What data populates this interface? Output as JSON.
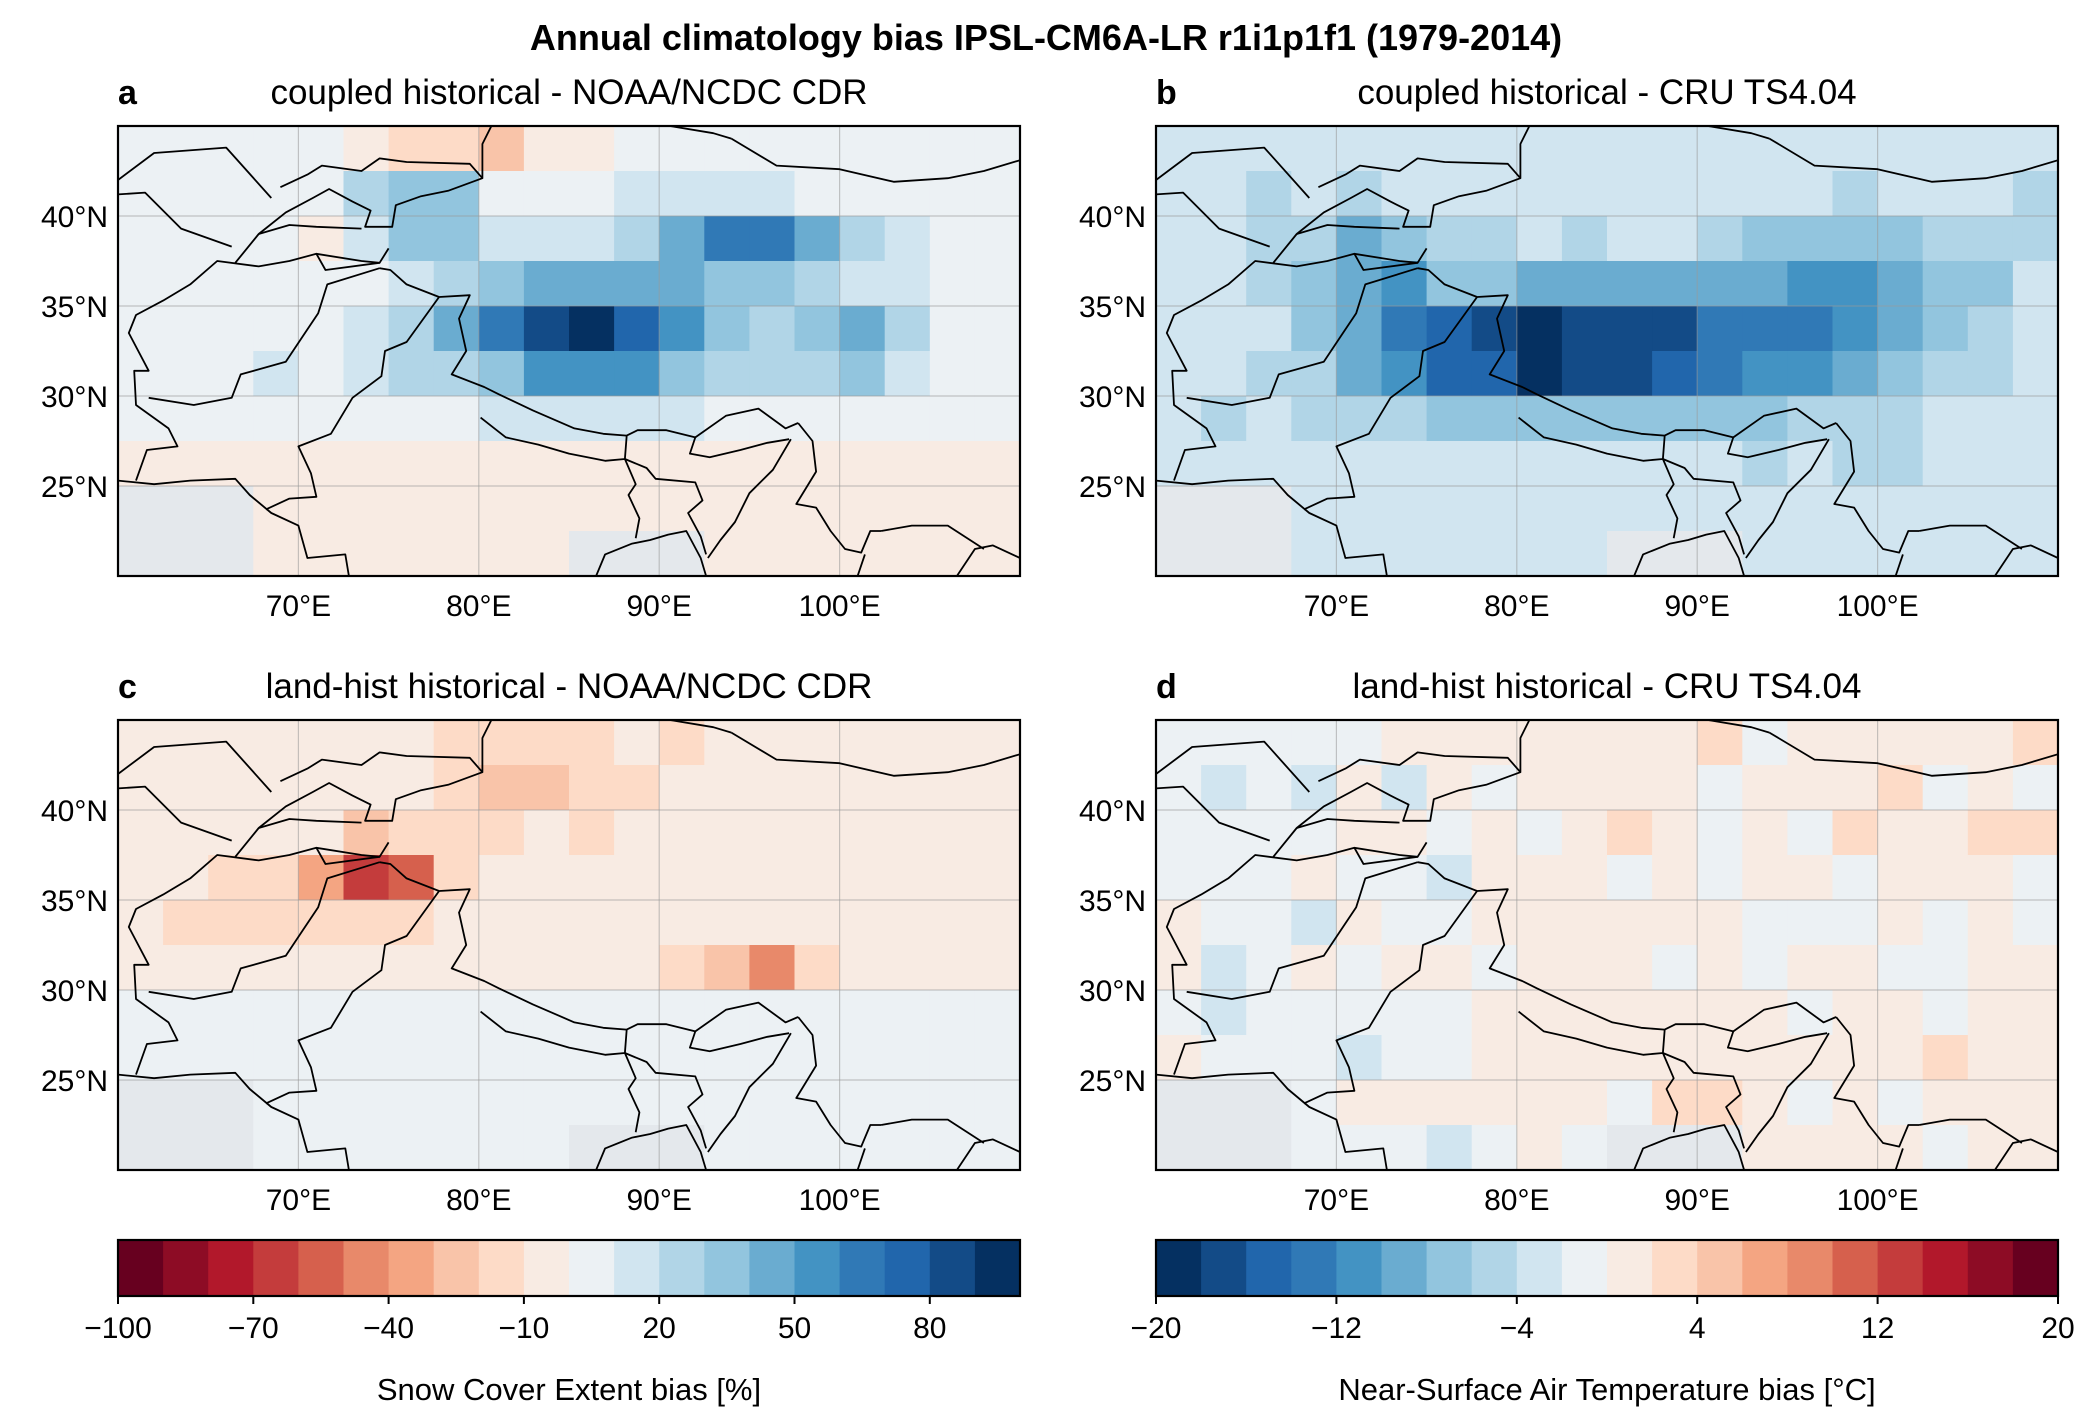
{
  "figure": {
    "title": "Annual climatology bias IPSL-CM6A-LR r1i1p1f1 (1979-2014)"
  },
  "panels": [
    {
      "letter": "a",
      "title": "coupled historical - NOAA/NCDC CDR"
    },
    {
      "letter": "b",
      "title": "coupled historical - CRU TS4.04"
    },
    {
      "letter": "c",
      "title": "land-hist historical - NOAA/NCDC CDR"
    },
    {
      "letter": "d",
      "title": "land-hist historical - CRU TS4.04"
    }
  ],
  "axes": {
    "lat_labels": [
      "40°N",
      "35°N",
      "30°N",
      "25°N"
    ],
    "lon_labels": [
      "70°E",
      "80°E",
      "90°E",
      "100°E"
    ]
  },
  "colorbars": {
    "snow": {
      "label": "Snow Cover Extent bias [%]",
      "tick_labels": [
        "−100",
        "−70",
        "−40",
        "−10",
        "20",
        "50",
        "80"
      ],
      "colors": [
        "#67001f",
        "#8d0c25",
        "#b2182b",
        "#c43c3c",
        "#d6604d",
        "#e8896a",
        "#f4a582",
        "#f9c4a9",
        "#fddbc7",
        "#f8ebe3",
        "#ecf1f4",
        "#d1e5f0",
        "#b1d5e7",
        "#92c5de",
        "#6aacd0",
        "#4393c3",
        "#3079b6",
        "#2166ac",
        "#134b87",
        "#053061"
      ]
    },
    "temp": {
      "label": "Near-Surface Air Temperature bias [°C]",
      "tick_labels": [
        "−20",
        "−12",
        "−4",
        "4",
        "12",
        "20"
      ],
      "colors": [
        "#053061",
        "#134b87",
        "#2166ac",
        "#3079b6",
        "#4393c3",
        "#6aacd0",
        "#92c5de",
        "#b1d5e7",
        "#d1e5f0",
        "#ecf1f4",
        "#f8ebe3",
        "#fddbc7",
        "#f9c4a9",
        "#f4a582",
        "#e8896a",
        "#d6604d",
        "#c43c3c",
        "#b2182b",
        "#8d0c25",
        "#67001f"
      ]
    }
  },
  "chart_data": [
    {
      "type": "heatmap",
      "panel": "a",
      "title": "coupled historical - NOAA/NCDC CDR",
      "xlim": [
        60,
        110
      ],
      "ylim": [
        20,
        45
      ],
      "colorbar": "snow",
      "vmin": -100,
      "vmax": 100,
      "grid_lon_start": 60,
      "grid_lat_top": 45,
      "dlon": 2.5,
      "dlat": 2.5,
      "rows": [
        "aaaaaaaMMNNNNNaaaaaa",
        "aaaaaaNPSSNaaaaaaaaa",
        "aaaaaMaaWbbSbaaaaaaa",
        "aaaaaVZZYaaWaabbaaaa",
        "aaaaVTbWYdddbZYWaaaa",
        "aaaaaXbbbbbcbaaaaaaa",
        "aabbbcZZZcccZbbbbaaa",
        "aaaaaaaaaaaaaaaaaaaa",
        "aaaaaaaaaaaaaaaaaaaa",
        "aaaaaaaaaaaaaaaaaaaa"
      ],
      "notes": "Large positive snow cover bias (up to ~90%) over Tibetan Plateau 80–100°E, 28–37°N; weak negative bias elsewhere"
    },
    {
      "type": "heatmap",
      "panel": "b",
      "title": "coupled historical - CRU TS4.04",
      "xlim": [
        60,
        110
      ],
      "ylim": [
        20,
        45
      ],
      "colorbar": "temp",
      "vmin": -20,
      "vmax": 20,
      "notes": "Cold bias everywhere, strongest (about −16 to −20 °C) along the Himalaya / western Tibetan Plateau near 75–90°E, 30–35°N"
    },
    {
      "type": "heatmap",
      "panel": "c",
      "title": "land-hist historical - NOAA/NCDC CDR",
      "xlim": [
        60,
        110
      ],
      "ylim": [
        20,
        45
      ],
      "colorbar": "snow",
      "vmin": -100,
      "vmax": 100,
      "notes": "Negative snow cover bias, strongest (about −60 to −80%) over Karakoram/Pamir near 72–77°E, 35–38°N and eastern Himalaya near 94–98°E, 29–31°N"
    },
    {
      "type": "heatmap",
      "panel": "d",
      "title": "land-hist historical - CRU TS4.04",
      "xlim": [
        60,
        110
      ],
      "ylim": [
        20,
        45
      ],
      "colorbar": "temp",
      "vmin": -20,
      "vmax": 20,
      "notes": "Weak biases within about ±2 °C everywhere"
    }
  ]
}
